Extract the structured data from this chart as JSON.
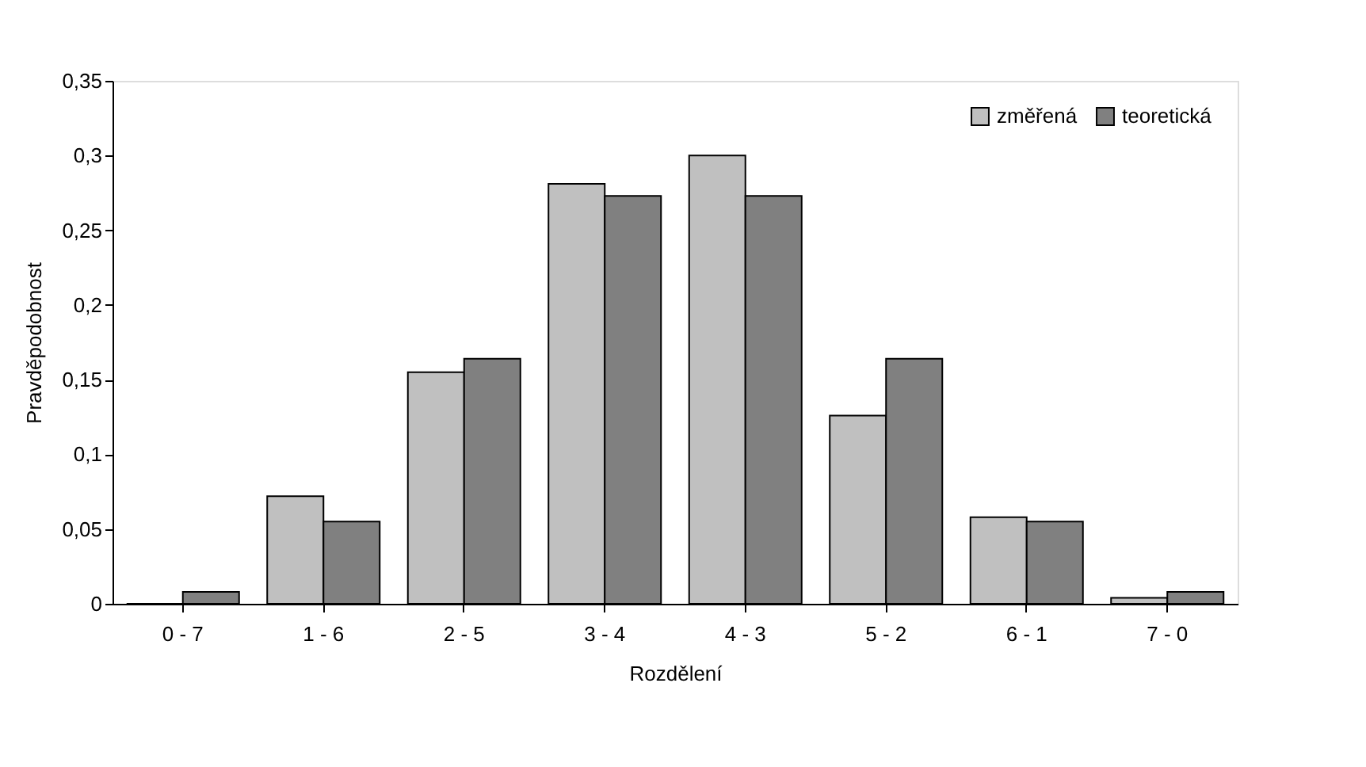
{
  "chart_data": {
    "type": "bar",
    "xlabel": "Rozdělení",
    "ylabel": "Pravděpodobnost",
    "categories": [
      "0 - 7",
      "1 - 6",
      "2 - 5",
      "3 - 4",
      "4 - 3",
      "5 - 2",
      "6 - 1",
      "7 - 0"
    ],
    "series": [
      {
        "name": "změřená",
        "color": "#c0c0c0",
        "values": [
          0,
          0.072,
          0.155,
          0.281,
          0.3,
          0.126,
          0.058,
          0.004
        ]
      },
      {
        "name": "teoretická",
        "color": "#808080",
        "values": [
          0.008,
          0.055,
          0.164,
          0.273,
          0.273,
          0.164,
          0.055,
          0.008
        ]
      }
    ],
    "ylim": [
      0,
      0.35
    ],
    "yticks": [
      {
        "value": 0,
        "label": "0"
      },
      {
        "value": 0.05,
        "label": "0,05"
      },
      {
        "value": 0.1,
        "label": "0,1"
      },
      {
        "value": 0.15,
        "label": "0,15"
      },
      {
        "value": 0.2,
        "label": "0,2"
      },
      {
        "value": 0.25,
        "label": "0,25"
      },
      {
        "value": 0.3,
        "label": "0,3"
      },
      {
        "value": 0.35,
        "label": "0,35"
      }
    ],
    "grid": false,
    "legend": "top right"
  }
}
